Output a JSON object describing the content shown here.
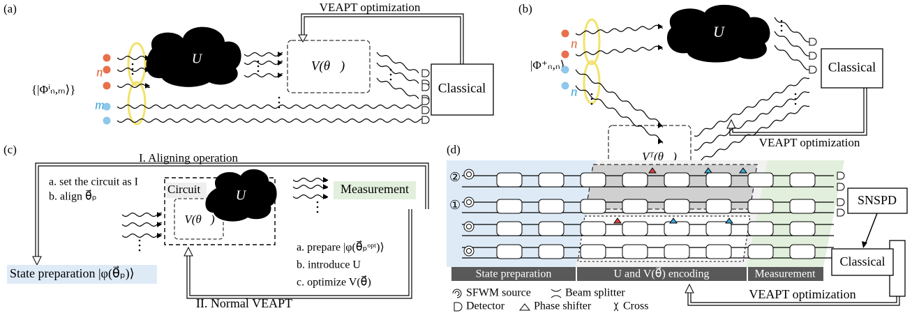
{
  "panel_a": {
    "label": "(a)",
    "feedback": "VEAPT optimization",
    "unitary": "U",
    "circuit": "V(θ⃗)",
    "processor": "Classical",
    "mode_n": "n",
    "mode_m": "m",
    "state": "{|Φⁱₙ,ₘ⟩}"
  },
  "panel_b": {
    "label": "(b)",
    "unitary": "U",
    "mode_n1": "n",
    "mode_n2": "n",
    "state": "|Φ⁺ₙ,ₙ⟩",
    "processor": "Classical",
    "circuit": "Vᵀ(θ⃗)",
    "feedback": "VEAPT optimization"
  },
  "panel_c": {
    "label": "(c)",
    "step_one": "I. Aligning operation",
    "align_a": "a. set the circuit as I",
    "align_b": "b. align θ⃗ₚ",
    "circuit_label": "Circuit",
    "unitary": "U",
    "circuit": "V(θ⃗)",
    "measurement": "Measurement",
    "state_preparation": "State preparation  |φ(θ⃗ₚ)⟩",
    "normal_a": "a. prepare  |φ(θ⃗ₚᵒᵖᵗ)⟩",
    "normal_b": "b. introduce  U",
    "normal_c": "c. optimize  V(θ⃗)",
    "step_two": "II. Normal VEAPT"
  },
  "panel_d": {
    "label": "(d)",
    "input_two": "②",
    "input_one": "①",
    "detector_system": "SNSPD",
    "processor": "Classical",
    "stages": [
      "State preparation",
      "U and V(θ⃗) encoding",
      "Measurement"
    ],
    "legend": [
      "SFWM source",
      "Beam splitter",
      "Detector",
      "Phase shifter",
      "Cross"
    ],
    "feedback": "VEAPT optimization"
  }
}
